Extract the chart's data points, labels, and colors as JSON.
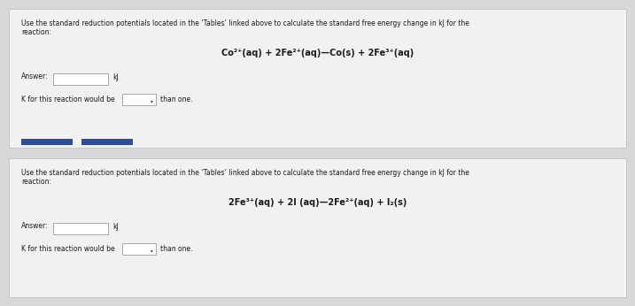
{
  "bg_color": "#d8d8d8",
  "card_color": "#f2f1f1",
  "card_border_color": "#bbbbbb",
  "text_color": "#1a1a1a",
  "accent_blue": "#2a4fa0",
  "card1": {
    "description_line1": "Use the standard reduction potentials located in the ‘Tables’ linked above to calculate the standard free energy change in kJ for the",
    "description_line2": "reaction:",
    "equation": "Co²⁺(aq) + 2Fe²⁺(aq)—Co(s) + 2Fe³⁺(aq)",
    "answer_label": "Answer:",
    "answer_unit": "kJ",
    "k_label": "K for this reaction would be",
    "k_suffix": "than one.",
    "has_blue_bar": true
  },
  "card2": {
    "description_line1": "Use the standard reduction potentials located in the ‘Tables’ linked above to calculate the standard free energy change in kJ for the",
    "description_line2": "reaction:",
    "equation": "2Fe³⁺(aq) + 2I (aq)—2Fe²⁺(aq) + I₂(s)",
    "answer_label": "Answer:",
    "answer_unit": "kJ",
    "k_label": "K for this reaction would be",
    "k_suffix": "than one.",
    "has_blue_bar": false
  },
  "figsize": [
    7.17,
    3.46
  ],
  "dpi": 100
}
